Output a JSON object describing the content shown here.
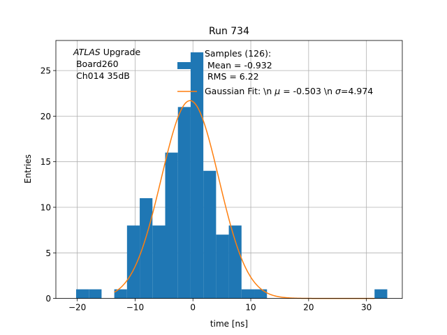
{
  "chart_data": {
    "type": "bar",
    "title": "Run 734",
    "xlabel": "time [ns]",
    "ylabel": "Entries",
    "xlim": [
      -23.7,
      36.2
    ],
    "ylim": [
      0,
      28.3
    ],
    "xticks": [
      -20,
      -10,
      0,
      10,
      20,
      30
    ],
    "yticks": [
      0,
      5,
      10,
      15,
      20,
      25
    ],
    "grid": true,
    "bin_width": 2.2,
    "bins": [
      {
        "x0": -20.2,
        "count": 1
      },
      {
        "x0": -18.0,
        "count": 1
      },
      {
        "x0": -13.6,
        "count": 1
      },
      {
        "x0": -11.4,
        "count": 8
      },
      {
        "x0": -9.2,
        "count": 11
      },
      {
        "x0": -7.0,
        "count": 8
      },
      {
        "x0": -4.8,
        "count": 16
      },
      {
        "x0": -2.6,
        "count": 21
      },
      {
        "x0": -0.4,
        "count": 27
      },
      {
        "x0": 1.8,
        "count": 14
      },
      {
        "x0": 4.0,
        "count": 7
      },
      {
        "x0": 6.2,
        "count": 8
      },
      {
        "x0": 8.4,
        "count": 1
      },
      {
        "x0": 10.6,
        "count": 1
      },
      {
        "x0": 31.4,
        "count": 1
      }
    ],
    "hist_color": "#1f77b4",
    "fit": {
      "type": "gaussian",
      "mu": -0.503,
      "sigma": 4.974,
      "amplitude": 21.7,
      "color": "#ff7f0e"
    },
    "annotation": {
      "line1_italic": "ATLAS",
      "line1_rest": " Upgrade",
      "line2": " Board260",
      "line3": " Ch014 35dB"
    },
    "legend": {
      "position": "top-right",
      "samples_line1": "Samples (126):",
      "samples_line2": " Mean = -0.932",
      "samples_line3": " RMS = 6.22",
      "fit_label_prefix": "Gaussian Fit: \\n ",
      "fit_mu_symbol": "μ",
      "fit_mu_text": " = -0.503 \\n ",
      "fit_sigma_symbol": "σ",
      "fit_sigma_text": "=4.974"
    }
  }
}
